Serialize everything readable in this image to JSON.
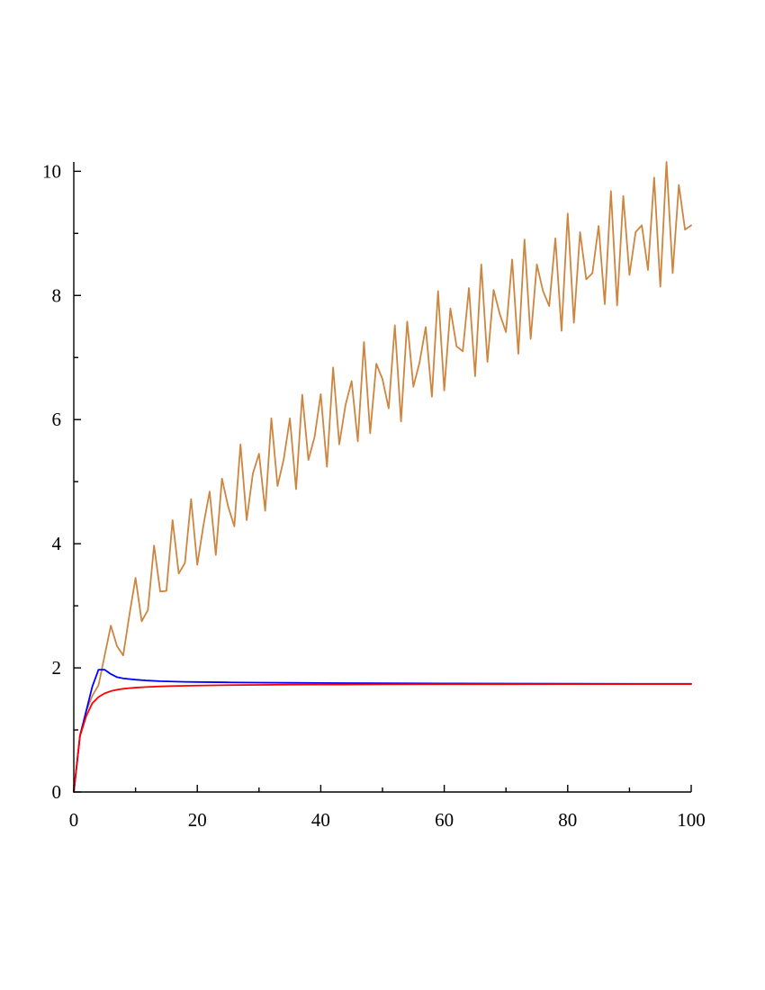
{
  "chart_data": {
    "type": "line",
    "title": "",
    "xlabel": "",
    "ylabel": "",
    "xlim": [
      0,
      100
    ],
    "ylim": [
      0,
      10.15
    ],
    "grid": false,
    "legend": "none",
    "x_ticks": [
      0,
      20,
      40,
      60,
      80,
      100
    ],
    "x_minor_ticks": [
      10,
      30,
      50,
      70,
      90
    ],
    "x_tick_labels": [
      "0",
      "20",
      "40",
      "60",
      "80",
      "100"
    ],
    "y_ticks": [
      0,
      2,
      4,
      6,
      8,
      10
    ],
    "y_minor_ticks": [
      1,
      3,
      5,
      7,
      9
    ],
    "y_tick_labels": [
      "0",
      "2",
      "4",
      "6",
      "8",
      "10"
    ],
    "series": [
      {
        "color": "#cd853f",
        "points": [
          [
            0,
            0
          ],
          [
            1,
            0.92
          ],
          [
            2,
            1.3
          ],
          [
            3,
            1.55
          ],
          [
            4,
            1.72
          ],
          [
            5,
            2.2
          ],
          [
            6,
            2.68
          ],
          [
            7,
            2.35
          ],
          [
            8,
            2.2
          ],
          [
            9,
            2.85
          ],
          [
            10,
            3.45
          ],
          [
            11,
            2.75
          ],
          [
            12,
            2.93
          ],
          [
            13,
            3.97
          ],
          [
            14,
            3.23
          ],
          [
            15,
            3.24
          ],
          [
            16,
            4.38
          ],
          [
            17,
            3.52
          ],
          [
            18,
            3.69
          ],
          [
            19,
            4.72
          ],
          [
            20,
            3.66
          ],
          [
            21,
            4.3
          ],
          [
            22,
            4.84
          ],
          [
            23,
            3.82
          ],
          [
            24,
            5.05
          ],
          [
            25,
            4.6
          ],
          [
            26,
            4.28
          ],
          [
            27,
            5.6
          ],
          [
            28,
            4.38
          ],
          [
            29,
            5.13
          ],
          [
            30,
            5.45
          ],
          [
            31,
            4.53
          ],
          [
            32,
            6.02
          ],
          [
            33,
            4.93
          ],
          [
            34,
            5.36
          ],
          [
            35,
            6.02
          ],
          [
            36,
            4.88
          ],
          [
            37,
            6.4
          ],
          [
            38,
            5.35
          ],
          [
            39,
            5.72
          ],
          [
            40,
            6.41
          ],
          [
            41,
            5.24
          ],
          [
            42,
            6.84
          ],
          [
            43,
            5.6
          ],
          [
            44,
            6.23
          ],
          [
            45,
            6.62
          ],
          [
            46,
            5.65
          ],
          [
            47,
            7.25
          ],
          [
            48,
            5.78
          ],
          [
            49,
            6.9
          ],
          [
            50,
            6.65
          ],
          [
            51,
            6.18
          ],
          [
            52,
            7.52
          ],
          [
            53,
            5.97
          ],
          [
            54,
            7.58
          ],
          [
            55,
            6.53
          ],
          [
            56,
            6.92
          ],
          [
            57,
            7.49
          ],
          [
            58,
            6.37
          ],
          [
            59,
            8.07
          ],
          [
            60,
            6.47
          ],
          [
            61,
            7.79
          ],
          [
            62,
            7.18
          ],
          [
            63,
            7.1
          ],
          [
            64,
            8.12
          ],
          [
            65,
            6.7
          ],
          [
            66,
            8.5
          ],
          [
            67,
            6.93
          ],
          [
            68,
            8.09
          ],
          [
            69,
            7.7
          ],
          [
            70,
            7.41
          ],
          [
            71,
            8.58
          ],
          [
            72,
            7.06
          ],
          [
            73,
            8.9
          ],
          [
            74,
            7.3
          ],
          [
            75,
            8.5
          ],
          [
            76,
            8.07
          ],
          [
            77,
            7.83
          ],
          [
            78,
            8.92
          ],
          [
            79,
            7.43
          ],
          [
            80,
            9.32
          ],
          [
            81,
            7.56
          ],
          [
            82,
            9.02
          ],
          [
            83,
            8.26
          ],
          [
            84,
            8.36
          ],
          [
            85,
            9.12
          ],
          [
            86,
            7.86
          ],
          [
            87,
            9.68
          ],
          [
            88,
            7.84
          ],
          [
            89,
            9.6
          ],
          [
            90,
            8.33
          ],
          [
            91,
            9.02
          ],
          [
            92,
            9.13
          ],
          [
            93,
            8.41
          ],
          [
            94,
            9.9
          ],
          [
            95,
            8.14
          ],
          [
            96,
            10.15
          ],
          [
            97,
            8.36
          ],
          [
            98,
            9.78
          ],
          [
            99,
            9.06
          ],
          [
            100,
            9.13
          ]
        ]
      },
      {
        "color": "#0000ff",
        "points": [
          [
            0,
            0
          ],
          [
            1,
            0.9
          ],
          [
            2,
            1.3
          ],
          [
            3,
            1.7
          ],
          [
            4,
            1.97
          ],
          [
            5,
            1.97
          ],
          [
            6,
            1.9
          ],
          [
            7,
            1.85
          ],
          [
            8,
            1.83
          ],
          [
            9,
            1.82
          ],
          [
            10,
            1.81
          ],
          [
            12,
            1.795
          ],
          [
            14,
            1.785
          ],
          [
            16,
            1.78
          ],
          [
            18,
            1.775
          ],
          [
            20,
            1.772
          ],
          [
            25,
            1.766
          ],
          [
            30,
            1.762
          ],
          [
            35,
            1.759
          ],
          [
            40,
            1.756
          ],
          [
            50,
            1.752
          ],
          [
            60,
            1.749
          ],
          [
            70,
            1.747
          ],
          [
            80,
            1.745
          ],
          [
            90,
            1.744
          ],
          [
            100,
            1.743
          ]
        ]
      },
      {
        "color": "#ff0000",
        "points": [
          [
            0,
            0
          ],
          [
            1,
            0.9
          ],
          [
            2,
            1.22
          ],
          [
            3,
            1.43
          ],
          [
            4,
            1.53
          ],
          [
            5,
            1.59
          ],
          [
            6,
            1.625
          ],
          [
            7,
            1.648
          ],
          [
            8,
            1.663
          ],
          [
            9,
            1.673
          ],
          [
            10,
            1.681
          ],
          [
            12,
            1.693
          ],
          [
            14,
            1.701
          ],
          [
            16,
            1.707
          ],
          [
            18,
            1.711
          ],
          [
            20,
            1.715
          ],
          [
            25,
            1.722
          ],
          [
            30,
            1.726
          ],
          [
            35,
            1.729
          ],
          [
            40,
            1.731
          ],
          [
            50,
            1.734
          ],
          [
            60,
            1.736
          ],
          [
            70,
            1.737
          ],
          [
            80,
            1.738
          ],
          [
            90,
            1.739
          ],
          [
            100,
            1.739
          ]
        ]
      }
    ]
  }
}
